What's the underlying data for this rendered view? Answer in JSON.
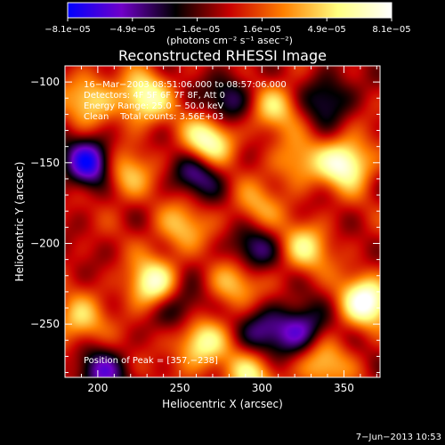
{
  "chart_data": {
    "type": "heatmap",
    "title": "Reconstructed RHESSI Image",
    "xlabel": "Heliocentric X (arcsec)",
    "ylabel": "Heliocentric Y (arcsec)",
    "xlim": [
      180,
      372
    ],
    "ylim": [
      -283,
      -90
    ],
    "x_ticks": [
      200,
      250,
      300,
      350
    ],
    "y_ticks": [
      -100,
      -150,
      -200,
      -250
    ],
    "x_tick_labels": [
      "200",
      "250",
      "300",
      "350"
    ],
    "y_tick_labels": [
      "−100",
      "−150",
      "−200",
      "−250"
    ],
    "colorbar": {
      "range": [
        -8.1e-05,
        8.1e-05
      ],
      "tick_labels": [
        "−8.1e−05",
        "−4.9e−05",
        "−1.6e−05",
        "1.6e−05",
        "4.9e−05",
        "8.1e−05"
      ],
      "unit_label": "(photons cm⁻² s⁻¹ asec⁻²)",
      "colors": [
        "#0000ff",
        "#7000c8",
        "#000000",
        "#c80000",
        "#ff8000",
        "#ffff80",
        "#ffffff"
      ]
    },
    "annotations": [
      "16−Mar−2003 08:51:06.000 to 08:57:06.000",
      "Detectors: 4F 5F 6F 7F 8F, Att 0",
      "Energy Range: 25.0 − 50.0 keV",
      "Clean    Total counts: 3.56E+03"
    ],
    "peak_label": "Position of Peak = [357,−238]",
    "peak": {
      "x": 357,
      "y": -238
    },
    "sources": [
      {
        "x": 363,
        "y": -236,
        "v": 1.0
      },
      {
        "x": 351,
        "y": -150,
        "v": 0.95
      },
      {
        "x": 267,
        "y": -137,
        "v": 0.9
      },
      {
        "x": 326,
        "y": -203,
        "v": 0.6
      },
      {
        "x": 308,
        "y": -115,
        "v": 0.55
      },
      {
        "x": 228,
        "y": -110,
        "v": 0.8
      },
      {
        "x": 195,
        "y": -110,
        "v": 0.6
      },
      {
        "x": 216,
        "y": -157,
        "v": 0.55
      },
      {
        "x": 233,
        "y": -225,
        "v": 0.85
      },
      {
        "x": 250,
        "y": -190,
        "v": 0.5
      },
      {
        "x": 262,
        "y": -262,
        "v": 0.75
      },
      {
        "x": 292,
        "y": -282,
        "v": 0.6
      },
      {
        "x": 188,
        "y": -248,
        "v": 0.55
      },
      {
        "x": 336,
        "y": -275,
        "v": 0.55
      },
      {
        "x": 282,
        "y": -225,
        "v": 0.55
      },
      {
        "x": 321,
        "y": -150,
        "v": 0.45
      },
      {
        "x": 296,
        "y": -178,
        "v": 0.4
      },
      {
        "x": 195,
        "y": -150,
        "v": -0.9
      },
      {
        "x": 261,
        "y": -156,
        "v": -0.6
      },
      {
        "x": 323,
        "y": -253,
        "v": -0.7
      },
      {
        "x": 201,
        "y": -280,
        "v": -0.6
      },
      {
        "x": 280,
        "y": -110,
        "v": -0.5
      },
      {
        "x": 340,
        "y": -110,
        "v": -0.5
      },
      {
        "x": 250,
        "y": -238,
        "v": -0.5
      },
      {
        "x": 294,
        "y": -204,
        "v": -0.55
      },
      {
        "x": 300,
        "y": -255,
        "v": -0.45
      }
    ]
  },
  "footer": {
    "timestamp": "7−Jun−2013 10:53"
  }
}
